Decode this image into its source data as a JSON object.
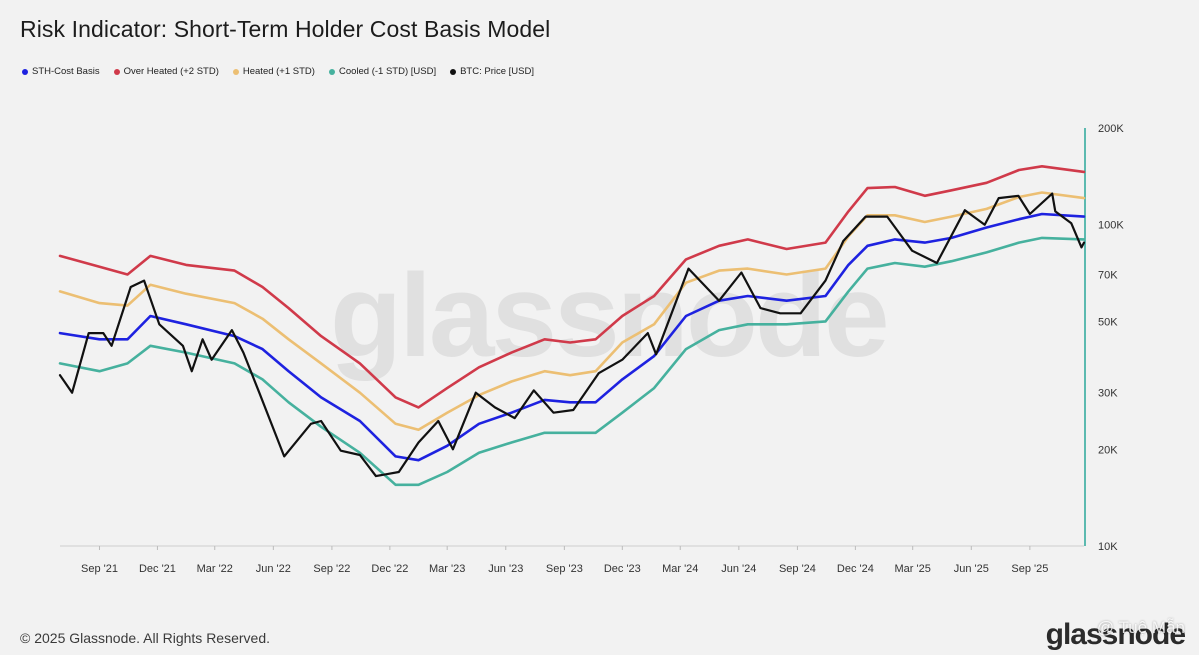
{
  "header": {
    "title": "Risk Indicator: Short-Term Holder Cost Basis Model"
  },
  "legend": [
    {
      "label": "STH-Cost Basis",
      "color": "#1e22e0"
    },
    {
      "label": "Over Heated (+2 STD)",
      "color": "#d03a4a"
    },
    {
      "label": "Heated (+1 STD)",
      "color": "#ecbf73"
    },
    {
      "label": "Cooled (-1 STD) [USD]",
      "color": "#46b19e"
    },
    {
      "label": "BTC: Price [USD]",
      "color": "#111111"
    }
  ],
  "footer": {
    "copyright": "© 2025 Glassnode. All Rights Reserved.",
    "brand": "glassnode",
    "credit": "@ Tuệ Mẫn"
  },
  "watermark": "glassnode",
  "colors": {
    "background": "#f2f2f2",
    "axis_line": "#2aa79a",
    "tick_text": "#333333"
  },
  "chart_data": {
    "type": "line",
    "title": "Risk Indicator: Short-Term Holder Cost Basis Model",
    "y_scale": "log",
    "ylim": [
      10000,
      200000
    ],
    "y_ticks": [
      {
        "value": 200000,
        "label": "200K"
      },
      {
        "value": 100000,
        "label": "100K"
      },
      {
        "value": 70000,
        "label": "70K"
      },
      {
        "value": 50000,
        "label": "50K"
      },
      {
        "value": 30000,
        "label": "30K"
      },
      {
        "value": 20000,
        "label": "20K"
      },
      {
        "value": 10000,
        "label": "10K"
      }
    ],
    "xlim": [
      "2021-07-01",
      "2025-11-25"
    ],
    "x_ticks": [
      {
        "date": "2021-09-01",
        "label": "Sep '21"
      },
      {
        "date": "2021-12-01",
        "label": "Dec '21"
      },
      {
        "date": "2022-03-01",
        "label": "Mar '22"
      },
      {
        "date": "2022-06-01",
        "label": "Jun '22"
      },
      {
        "date": "2022-09-01",
        "label": "Sep '22"
      },
      {
        "date": "2022-12-01",
        "label": "Dec '22"
      },
      {
        "date": "2023-03-01",
        "label": "Mar '23"
      },
      {
        "date": "2023-06-01",
        "label": "Jun '23"
      },
      {
        "date": "2023-09-01",
        "label": "Sep '23"
      },
      {
        "date": "2023-12-01",
        "label": "Dec '23"
      },
      {
        "date": "2024-03-01",
        "label": "Mar '24"
      },
      {
        "date": "2024-06-01",
        "label": "Jun '24"
      },
      {
        "date": "2024-09-01",
        "label": "Sep '24"
      },
      {
        "date": "2024-12-01",
        "label": "Dec '24"
      },
      {
        "date": "2025-03-01",
        "label": "Mar '25"
      },
      {
        "date": "2025-06-01",
        "label": "Jun '25"
      },
      {
        "date": "2025-09-01",
        "label": "Sep '25"
      }
    ],
    "legend_position": "top-left",
    "grid": false,
    "series": [
      {
        "name": "Over Heated (+2 STD)",
        "color": "#d03a4a",
        "points": [
          [
            "2021-07-01",
            80000
          ],
          [
            "2021-09-01",
            74000
          ],
          [
            "2021-10-15",
            70000
          ],
          [
            "2021-11-20",
            80000
          ],
          [
            "2022-01-15",
            75000
          ],
          [
            "2022-04-01",
            72000
          ],
          [
            "2022-05-15",
            64000
          ],
          [
            "2022-06-25",
            55000
          ],
          [
            "2022-08-15",
            45000
          ],
          [
            "2022-10-15",
            37000
          ],
          [
            "2022-12-10",
            29000
          ],
          [
            "2023-01-15",
            27000
          ],
          [
            "2023-03-01",
            31000
          ],
          [
            "2023-04-20",
            36000
          ],
          [
            "2023-06-10",
            40000
          ],
          [
            "2023-08-01",
            44000
          ],
          [
            "2023-09-10",
            43000
          ],
          [
            "2023-10-20",
            44000
          ],
          [
            "2023-12-01",
            52000
          ],
          [
            "2024-01-20",
            60000
          ],
          [
            "2024-03-10",
            78000
          ],
          [
            "2024-05-01",
            86000
          ],
          [
            "2024-06-15",
            90000
          ],
          [
            "2024-08-15",
            84000
          ],
          [
            "2024-10-15",
            88000
          ],
          [
            "2024-11-20",
            110000
          ],
          [
            "2024-12-20",
            130000
          ],
          [
            "2025-02-01",
            131000
          ],
          [
            "2025-03-20",
            123000
          ],
          [
            "2025-05-01",
            128000
          ],
          [
            "2025-06-25",
            135000
          ],
          [
            "2025-08-15",
            148000
          ],
          [
            "2025-09-20",
            152000
          ],
          [
            "2025-11-25",
            146000
          ]
        ]
      },
      {
        "name": "Heated (+1 STD)",
        "color": "#ecbf73",
        "points": [
          [
            "2021-07-01",
            62000
          ],
          [
            "2021-09-01",
            57000
          ],
          [
            "2021-10-15",
            56000
          ],
          [
            "2021-11-20",
            65000
          ],
          [
            "2022-01-15",
            61000
          ],
          [
            "2022-04-01",
            57000
          ],
          [
            "2022-05-15",
            51000
          ],
          [
            "2022-06-25",
            44000
          ],
          [
            "2022-08-15",
            37000
          ],
          [
            "2022-10-15",
            30000
          ],
          [
            "2022-12-10",
            24000
          ],
          [
            "2023-01-15",
            23000
          ],
          [
            "2023-03-01",
            26000
          ],
          [
            "2023-04-20",
            29500
          ],
          [
            "2023-06-10",
            32500
          ],
          [
            "2023-08-01",
            35000
          ],
          [
            "2023-09-10",
            34000
          ],
          [
            "2023-10-20",
            35000
          ],
          [
            "2023-12-01",
            43000
          ],
          [
            "2024-01-20",
            49000
          ],
          [
            "2024-03-10",
            66000
          ],
          [
            "2024-05-01",
            72000
          ],
          [
            "2024-06-15",
            73000
          ],
          [
            "2024-08-15",
            70000
          ],
          [
            "2024-10-15",
            73000
          ],
          [
            "2024-11-20",
            92000
          ],
          [
            "2024-12-20",
            107000
          ],
          [
            "2025-02-01",
            107000
          ],
          [
            "2025-03-20",
            102000
          ],
          [
            "2025-05-01",
            106000
          ],
          [
            "2025-06-25",
            112000
          ],
          [
            "2025-08-15",
            122000
          ],
          [
            "2025-09-20",
            126000
          ],
          [
            "2025-11-25",
            121000
          ]
        ]
      },
      {
        "name": "STH-Cost Basis",
        "color": "#1e22e0",
        "points": [
          [
            "2021-07-01",
            46000
          ],
          [
            "2021-09-01",
            44000
          ],
          [
            "2021-10-15",
            44000
          ],
          [
            "2021-11-20",
            52000
          ],
          [
            "2022-01-15",
            49000
          ],
          [
            "2022-04-01",
            45000
          ],
          [
            "2022-05-15",
            41000
          ],
          [
            "2022-06-25",
            35000
          ],
          [
            "2022-08-15",
            29000
          ],
          [
            "2022-10-15",
            24500
          ],
          [
            "2022-12-10",
            19000
          ],
          [
            "2023-01-15",
            18500
          ],
          [
            "2023-03-01",
            20500
          ],
          [
            "2023-04-20",
            24000
          ],
          [
            "2023-06-10",
            26000
          ],
          [
            "2023-08-01",
            28500
          ],
          [
            "2023-09-10",
            28000
          ],
          [
            "2023-10-20",
            28000
          ],
          [
            "2023-12-01",
            33000
          ],
          [
            "2024-01-20",
            39000
          ],
          [
            "2024-03-10",
            52000
          ],
          [
            "2024-05-01",
            58000
          ],
          [
            "2024-06-15",
            60000
          ],
          [
            "2024-08-15",
            58000
          ],
          [
            "2024-10-15",
            60000
          ],
          [
            "2024-11-20",
            75000
          ],
          [
            "2024-12-20",
            86000
          ],
          [
            "2025-02-01",
            90000
          ],
          [
            "2025-03-20",
            88000
          ],
          [
            "2025-05-01",
            91000
          ],
          [
            "2025-06-25",
            98000
          ],
          [
            "2025-08-15",
            104000
          ],
          [
            "2025-09-20",
            108000
          ],
          [
            "2025-11-25",
            106000
          ]
        ]
      },
      {
        "name": "Cooled (-1 STD) [USD]",
        "color": "#46b19e",
        "points": [
          [
            "2021-07-01",
            37000
          ],
          [
            "2021-09-01",
            35000
          ],
          [
            "2021-10-15",
            37000
          ],
          [
            "2021-11-20",
            42000
          ],
          [
            "2022-01-15",
            40000
          ],
          [
            "2022-04-01",
            37000
          ],
          [
            "2022-05-15",
            33000
          ],
          [
            "2022-06-25",
            28000
          ],
          [
            "2022-08-15",
            23500
          ],
          [
            "2022-10-15",
            19500
          ],
          [
            "2022-12-10",
            15500
          ],
          [
            "2023-01-15",
            15500
          ],
          [
            "2023-03-01",
            17000
          ],
          [
            "2023-04-20",
            19500
          ],
          [
            "2023-06-10",
            21000
          ],
          [
            "2023-08-01",
            22500
          ],
          [
            "2023-09-10",
            22500
          ],
          [
            "2023-10-20",
            22500
          ],
          [
            "2023-12-01",
            26000
          ],
          [
            "2024-01-20",
            31000
          ],
          [
            "2024-03-10",
            41000
          ],
          [
            "2024-05-01",
            47000
          ],
          [
            "2024-06-15",
            49000
          ],
          [
            "2024-08-15",
            49000
          ],
          [
            "2024-10-15",
            50000
          ],
          [
            "2024-11-20",
            62000
          ],
          [
            "2024-12-20",
            73000
          ],
          [
            "2025-02-01",
            76000
          ],
          [
            "2025-03-20",
            74000
          ],
          [
            "2025-05-01",
            77000
          ],
          [
            "2025-06-25",
            82000
          ],
          [
            "2025-08-15",
            88000
          ],
          [
            "2025-09-20",
            91000
          ],
          [
            "2025-11-25",
            90000
          ]
        ]
      },
      {
        "name": "BTC: Price [USD]",
        "color": "#111111",
        "points": [
          [
            "2021-07-01",
            34000
          ],
          [
            "2021-07-20",
            30000
          ],
          [
            "2021-08-15",
            46000
          ],
          [
            "2021-09-07",
            46000
          ],
          [
            "2021-09-20",
            42000
          ],
          [
            "2021-10-20",
            64000
          ],
          [
            "2021-11-10",
            67000
          ],
          [
            "2021-12-04",
            49000
          ],
          [
            "2022-01-10",
            42000
          ],
          [
            "2022-01-24",
            35000
          ],
          [
            "2022-02-10",
            44000
          ],
          [
            "2022-02-24",
            38000
          ],
          [
            "2022-03-28",
            47000
          ],
          [
            "2022-04-15",
            40000
          ],
          [
            "2022-05-10",
            30000
          ],
          [
            "2022-06-18",
            19000
          ],
          [
            "2022-07-30",
            24000
          ],
          [
            "2022-08-15",
            24500
          ],
          [
            "2022-09-15",
            19800
          ],
          [
            "2022-10-15",
            19200
          ],
          [
            "2022-11-09",
            16500
          ],
          [
            "2022-12-15",
            17000
          ],
          [
            "2023-01-15",
            21000
          ],
          [
            "2023-02-15",
            24500
          ],
          [
            "2023-03-10",
            20000
          ],
          [
            "2023-04-15",
            30000
          ],
          [
            "2023-05-15",
            27000
          ],
          [
            "2023-06-15",
            25000
          ],
          [
            "2023-07-15",
            30500
          ],
          [
            "2023-08-15",
            26000
          ],
          [
            "2023-09-15",
            26500
          ],
          [
            "2023-10-25",
            34500
          ],
          [
            "2023-12-01",
            38000
          ],
          [
            "2024-01-10",
            46000
          ],
          [
            "2024-01-23",
            39500
          ],
          [
            "2024-03-14",
            73000
          ],
          [
            "2024-05-01",
            58000
          ],
          [
            "2024-06-05",
            71000
          ],
          [
            "2024-07-05",
            55000
          ],
          [
            "2024-08-05",
            53000
          ],
          [
            "2024-09-06",
            53000
          ],
          [
            "2024-10-15",
            67000
          ],
          [
            "2024-11-12",
            89000
          ],
          [
            "2024-12-17",
            106000
          ],
          [
            "2025-01-20",
            106000
          ],
          [
            "2025-02-28",
            83000
          ],
          [
            "2025-04-08",
            76000
          ],
          [
            "2025-05-22",
            111000
          ],
          [
            "2025-06-22",
            100000
          ],
          [
            "2025-07-14",
            121000
          ],
          [
            "2025-08-14",
            123000
          ],
          [
            "2025-09-01",
            108000
          ],
          [
            "2025-10-06",
            125000
          ],
          [
            "2025-10-11",
            110000
          ],
          [
            "2025-11-05",
            101000
          ],
          [
            "2025-11-21",
            85000
          ],
          [
            "2025-11-25",
            88000
          ]
        ]
      }
    ]
  }
}
